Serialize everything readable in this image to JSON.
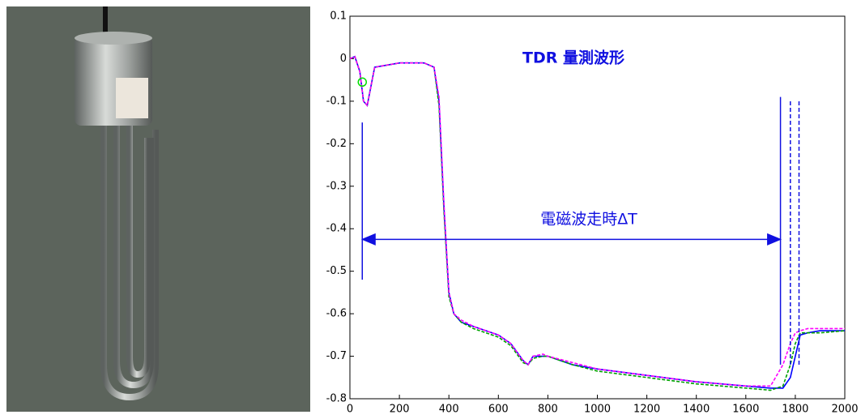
{
  "chart_data": {
    "type": "line",
    "title": "TDR 量測波形",
    "annotation": "電磁波走時ΔT",
    "x": [
      0,
      20,
      40,
      55,
      70,
      100,
      200,
      300,
      340,
      360,
      380,
      400,
      420,
      450,
      500,
      600,
      650,
      700,
      720,
      740,
      780,
      800,
      900,
      1000,
      1200,
      1400,
      1600,
      1700,
      1750,
      1780,
      1800,
      1820,
      1850,
      1900,
      2000
    ],
    "series": [
      {
        "color": "#0000ff",
        "values": [
          0,
          0.005,
          -0.03,
          -0.1,
          -0.11,
          -0.02,
          -0.01,
          -0.01,
          -0.02,
          -0.1,
          -0.35,
          -0.55,
          -0.6,
          -0.62,
          -0.63,
          -0.65,
          -0.67,
          -0.71,
          -0.72,
          -0.7,
          -0.7,
          -0.7,
          -0.72,
          -0.73,
          -0.745,
          -0.76,
          -0.77,
          -0.775,
          -0.775,
          -0.75,
          -0.7,
          -0.65,
          -0.645,
          -0.64,
          -0.64
        ]
      },
      {
        "color": "#00a000",
        "values": [
          0,
          0.005,
          -0.03,
          -0.1,
          -0.11,
          -0.02,
          -0.01,
          -0.01,
          -0.02,
          -0.11,
          -0.36,
          -0.56,
          -0.6,
          -0.62,
          -0.635,
          -0.655,
          -0.675,
          -0.715,
          -0.72,
          -0.705,
          -0.7,
          -0.7,
          -0.72,
          -0.735,
          -0.75,
          -0.765,
          -0.775,
          -0.78,
          -0.77,
          -0.72,
          -0.67,
          -0.645,
          -0.645,
          -0.645,
          -0.64
        ]
      },
      {
        "color": "#ff00ff",
        "values": [
          0,
          0.005,
          -0.03,
          -0.1,
          -0.11,
          -0.02,
          -0.01,
          -0.01,
          -0.02,
          -0.09,
          -0.34,
          -0.55,
          -0.6,
          -0.615,
          -0.63,
          -0.65,
          -0.67,
          -0.71,
          -0.72,
          -0.7,
          -0.695,
          -0.7,
          -0.715,
          -0.73,
          -0.745,
          -0.76,
          -0.77,
          -0.77,
          -0.72,
          -0.67,
          -0.645,
          -0.64,
          -0.635,
          -0.635,
          -0.635
        ]
      }
    ],
    "marker": {
      "x": 50,
      "y": -0.055,
      "color": "#00dd00"
    },
    "vlines": [
      {
        "x": 50,
        "ymin": -0.52,
        "ymax": -0.15,
        "style": "solid"
      },
      {
        "x": 1740,
        "ymin": -0.72,
        "ymax": -0.09,
        "style": "solid"
      },
      {
        "x": 1780,
        "ymin": -0.72,
        "ymax": -0.1,
        "style": "dashed"
      },
      {
        "x": 1815,
        "ymin": -0.72,
        "ymax": -0.1,
        "style": "dashed"
      }
    ],
    "arrow": {
      "x": [
        50,
        1740
      ],
      "y": -0.425
    },
    "xlim": [
      0,
      2000
    ],
    "ylim": [
      -0.8,
      0.1
    ],
    "xticks": [
      0,
      200,
      400,
      600,
      800,
      1000,
      1200,
      1400,
      1600,
      1800,
      2000
    ],
    "yticks": [
      0.1,
      0,
      -0.1,
      -0.2,
      -0.3,
      -0.4,
      -0.5,
      -0.6,
      -0.7,
      -0.8
    ]
  }
}
